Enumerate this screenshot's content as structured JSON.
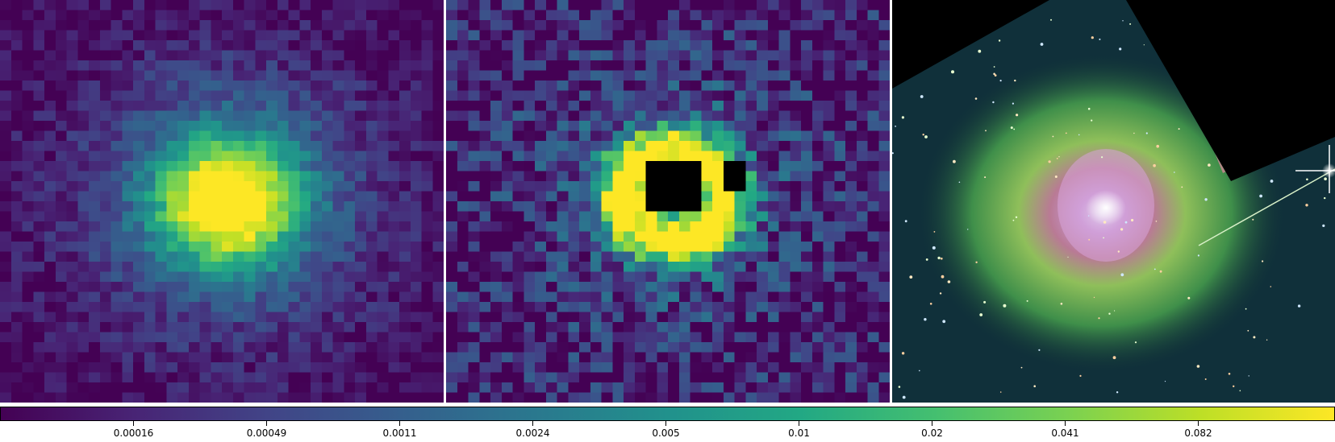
{
  "colormap": "viridis",
  "viridis_stops": [
    "#440154",
    "#482475",
    "#414487",
    "#355f8d",
    "#2a788e",
    "#21918c",
    "#22a884",
    "#44bf70",
    "#7ad151",
    "#bddf26",
    "#fde725"
  ],
  "panels": [
    {
      "name": "smoothed-map",
      "kind": "pixel-map"
    },
    {
      "name": "residual-map",
      "kind": "pixel-map",
      "masked_color": "#000000"
    },
    {
      "name": "rgb-composite",
      "kind": "color-image",
      "background": "#000000"
    }
  ],
  "colorbar": {
    "orientation": "horizontal",
    "scale": "log",
    "tick_labels": [
      "0.00016",
      "0.00049",
      "0.0011",
      "0.0024",
      "0.005",
      "0.01",
      "0.02",
      "0.041",
      "0.082"
    ]
  }
}
